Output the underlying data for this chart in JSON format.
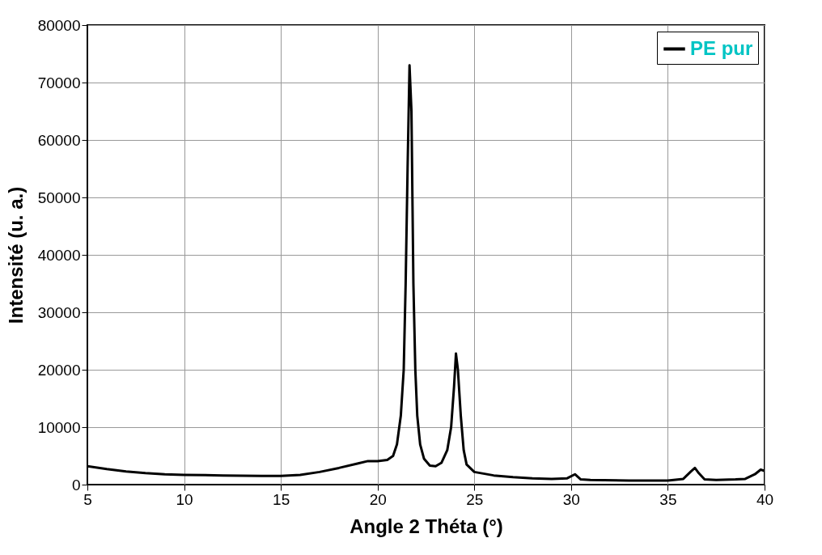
{
  "chart_data": {
    "type": "line",
    "xlabel": "Angle 2 Théta (°)",
    "ylabel": "Intensité (u. a.)",
    "xlim": [
      5,
      40
    ],
    "xticks": [
      5,
      10,
      15,
      20,
      25,
      30,
      35,
      40
    ],
    "ylim": [
      0,
      80000
    ],
    "yticks": [
      0,
      10000,
      20000,
      30000,
      40000,
      50000,
      60000,
      70000,
      80000
    ],
    "grid": true,
    "legend": "top right",
    "series": [
      {
        "name": "PE pur",
        "color": "#000000",
        "x": [
          5,
          6,
          7,
          8,
          9,
          10,
          12,
          14,
          15,
          16,
          17,
          18,
          19,
          19.5,
          20,
          20.5,
          20.8,
          21,
          21.2,
          21.35,
          21.45,
          21.55,
          21.65,
          21.75,
          21.8,
          21.85,
          21.95,
          22.05,
          22.2,
          22.4,
          22.7,
          23,
          23.3,
          23.6,
          23.8,
          23.95,
          24.05,
          24.15,
          24.3,
          24.45,
          24.6,
          25,
          26,
          27,
          28,
          29,
          29.8,
          30.2,
          30.5,
          31,
          33,
          35,
          35.8,
          36.2,
          36.4,
          36.6,
          36.9,
          37.5,
          38.5,
          39,
          39.5,
          39.8,
          40
        ],
        "values": [
          3200,
          2700,
          2300,
          2000,
          1800,
          1700,
          1600,
          1500,
          1500,
          1700,
          2200,
          2900,
          3700,
          4100,
          4100,
          4300,
          5000,
          7000,
          12000,
          20000,
          35000,
          55000,
          73000,
          65000,
          50000,
          35000,
          20000,
          12000,
          7000,
          4500,
          3300,
          3200,
          3800,
          6000,
          10000,
          17000,
          22800,
          20000,
          12000,
          6000,
          3500,
          2200,
          1600,
          1300,
          1100,
          1000,
          1100,
          1800,
          900,
          800,
          700,
          700,
          1000,
          2300,
          2900,
          2000,
          900,
          800,
          900,
          1000,
          1800,
          2600,
          2400
        ]
      }
    ]
  }
}
